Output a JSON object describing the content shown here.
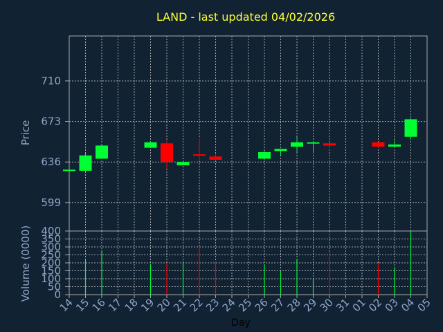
{
  "chart_data": {
    "type": "candlestick",
    "title": "LAND - last updated 04/02/2026",
    "xlabel": "Day",
    "ylabel_price": "Price",
    "ylabel_volume": "Volume (0000)",
    "x_ticks": [
      "14",
      "15",
      "16",
      "17",
      "18",
      "19",
      "20",
      "21",
      "22",
      "23",
      "24",
      "25",
      "26",
      "27",
      "28",
      "29",
      "30",
      "31",
      "01",
      "02",
      "03",
      "04",
      "05"
    ],
    "price_ticks": [
      599,
      636,
      673,
      710
    ],
    "price_range": [
      573,
      751
    ],
    "volume_ticks": [
      0,
      50,
      100,
      150,
      200,
      250,
      300,
      350,
      400
    ],
    "volume_range": [
      0,
      400
    ],
    "grid": true,
    "colors": {
      "background": "#112233",
      "up": "#00ff33",
      "down": "#ff0000",
      "grid": "#aaaaaa",
      "title": "#ffff33",
      "axis_text": "#8fa8c8"
    },
    "candles": [
      {
        "day": "14",
        "open": 629,
        "high": 629,
        "low": 629,
        "close": 629,
        "volume": 0
      },
      {
        "day": "15",
        "open": 628,
        "high": 644,
        "low": 626,
        "close": 642,
        "volume": 220
      },
      {
        "day": "16",
        "open": 639,
        "high": 652,
        "low": 639,
        "close": 651,
        "volume": 275
      },
      {
        "day": "19",
        "open": 649,
        "high": 655,
        "low": 649,
        "close": 654,
        "volume": 190
      },
      {
        "day": "20",
        "open": 653,
        "high": 656,
        "low": 630,
        "close": 636,
        "volume": 200
      },
      {
        "day": "21",
        "open": 633,
        "high": 636,
        "low": 633,
        "close": 636,
        "volume": 210
      },
      {
        "day": "22",
        "open": 643,
        "high": 658,
        "low": 637,
        "close": 642,
        "volume": 305
      },
      {
        "day": "23",
        "open": 641,
        "high": 644,
        "low": 637,
        "close": 638,
        "volume": 210
      },
      {
        "day": "26",
        "open": 639,
        "high": 646,
        "low": 638,
        "close": 645,
        "volume": 190
      },
      {
        "day": "27",
        "open": 646,
        "high": 648,
        "low": 642,
        "close": 648,
        "volume": 150
      },
      {
        "day": "28",
        "open": 650,
        "high": 659,
        "low": 645,
        "close": 654,
        "volume": 225
      },
      {
        "day": "29",
        "open": 653,
        "high": 655,
        "low": 644,
        "close": 654,
        "volume": 100
      },
      {
        "day": "30",
        "open": 653,
        "high": 654,
        "low": 649,
        "close": 651,
        "volume": 265
      },
      {
        "day": "02",
        "open": 654,
        "high": 654,
        "low": 649,
        "close": 650,
        "volume": 200
      },
      {
        "day": "03",
        "open": 650,
        "high": 656,
        "low": 649,
        "close": 652,
        "volume": 170
      },
      {
        "day": "04",
        "open": 659,
        "high": 676,
        "low": 656,
        "close": 675,
        "volume": 400
      }
    ]
  }
}
